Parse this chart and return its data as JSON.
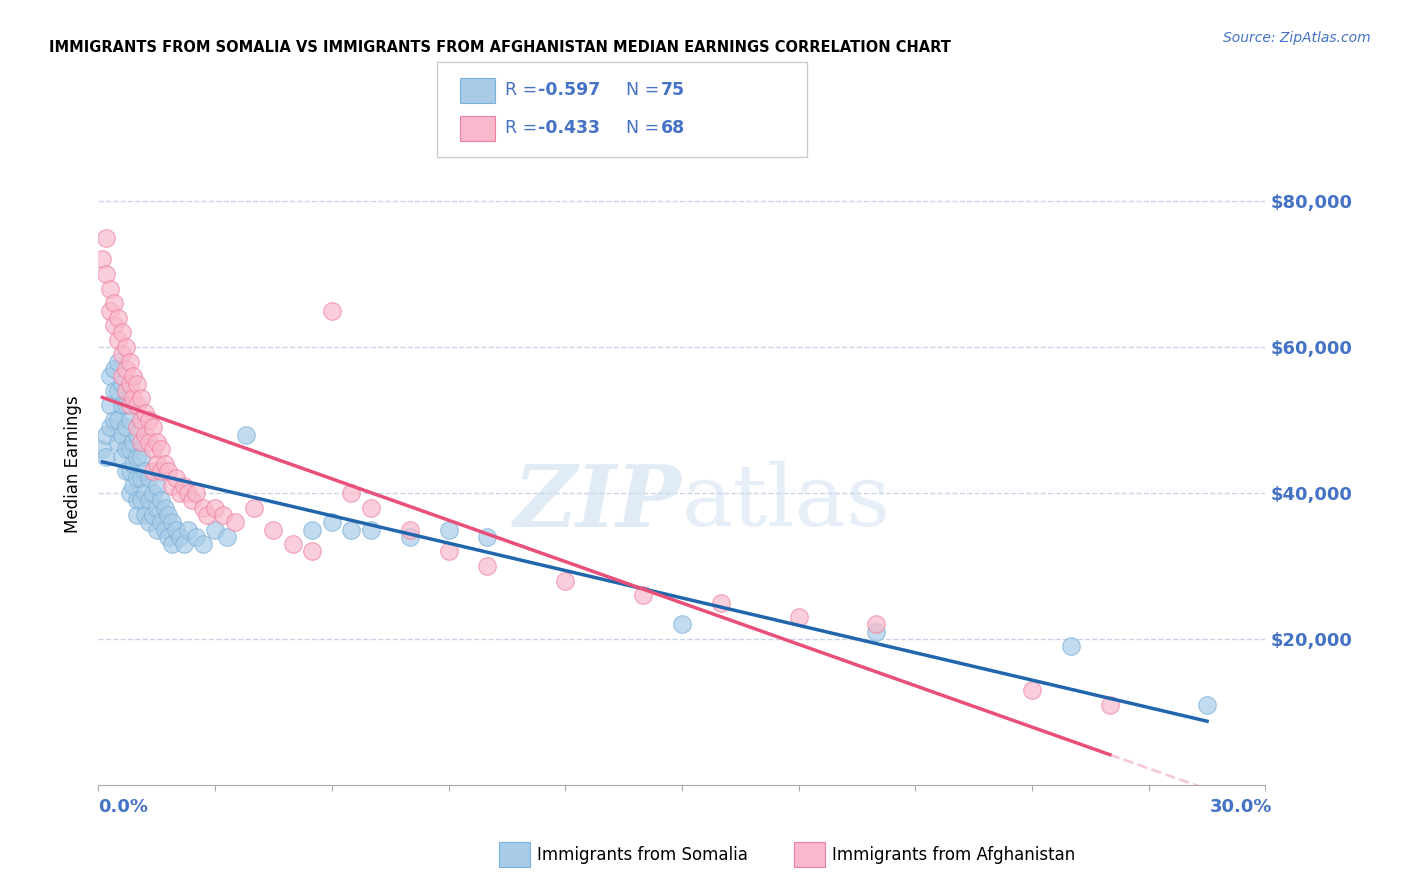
{
  "title": "IMMIGRANTS FROM SOMALIA VS IMMIGRANTS FROM AFGHANISTAN MEDIAN EARNINGS CORRELATION CHART",
  "source": "Source: ZipAtlas.com",
  "ylabel": "Median Earnings",
  "y_ticks": [
    20000,
    40000,
    60000,
    80000
  ],
  "y_tick_labels": [
    "$20,000",
    "$40,000",
    "$60,000",
    "$80,000"
  ],
  "xlim": [
    0.0,
    0.3
  ],
  "ylim": [
    0,
    88000
  ],
  "somalia_color": "#a8cce8",
  "afghanistan_color": "#f9b8cb",
  "somalia_edge_color": "#7ab0d8",
  "afghanistan_edge_color": "#f080a0",
  "regression_somalia_color": "#2166ac",
  "regression_afghanistan_color": "#e8507a",
  "regression_extended_color": "#f5c8d8",
  "blue_text_color": "#4472c4",
  "legend_text_color": "#4472c4",
  "watermark_color": "#d4e8f8",
  "somalia_x": [
    0.001,
    0.002,
    0.002,
    0.003,
    0.003,
    0.003,
    0.004,
    0.004,
    0.004,
    0.005,
    0.005,
    0.005,
    0.005,
    0.006,
    0.006,
    0.006,
    0.006,
    0.007,
    0.007,
    0.007,
    0.007,
    0.008,
    0.008,
    0.008,
    0.008,
    0.009,
    0.009,
    0.009,
    0.01,
    0.01,
    0.01,
    0.01,
    0.01,
    0.011,
    0.011,
    0.011,
    0.012,
    0.012,
    0.012,
    0.013,
    0.013,
    0.013,
    0.014,
    0.014,
    0.015,
    0.015,
    0.015,
    0.016,
    0.016,
    0.017,
    0.017,
    0.018,
    0.018,
    0.019,
    0.019,
    0.02,
    0.021,
    0.022,
    0.023,
    0.025,
    0.027,
    0.03,
    0.033,
    0.038,
    0.055,
    0.06,
    0.065,
    0.07,
    0.08,
    0.09,
    0.1,
    0.15,
    0.2,
    0.25,
    0.285
  ],
  "somalia_y": [
    46000,
    48000,
    45000,
    56000,
    52000,
    49000,
    57000,
    54000,
    50000,
    58000,
    54000,
    50000,
    47000,
    55000,
    52000,
    48000,
    45000,
    52000,
    49000,
    46000,
    43000,
    50000,
    46000,
    43000,
    40000,
    47000,
    44000,
    41000,
    48000,
    45000,
    42000,
    39000,
    37000,
    45000,
    42000,
    39000,
    43000,
    40000,
    37000,
    42000,
    39000,
    36000,
    40000,
    37000,
    41000,
    38000,
    35000,
    39000,
    36000,
    38000,
    35000,
    37000,
    34000,
    36000,
    33000,
    35000,
    34000,
    33000,
    35000,
    34000,
    33000,
    35000,
    34000,
    48000,
    35000,
    36000,
    35000,
    35000,
    34000,
    35000,
    34000,
    22000,
    21000,
    19000,
    11000
  ],
  "afghanistan_x": [
    0.001,
    0.002,
    0.002,
    0.003,
    0.003,
    0.004,
    0.004,
    0.005,
    0.005,
    0.006,
    0.006,
    0.006,
    0.007,
    0.007,
    0.007,
    0.008,
    0.008,
    0.008,
    0.009,
    0.009,
    0.01,
    0.01,
    0.01,
    0.011,
    0.011,
    0.011,
    0.012,
    0.012,
    0.013,
    0.013,
    0.014,
    0.014,
    0.014,
    0.015,
    0.015,
    0.016,
    0.016,
    0.017,
    0.018,
    0.019,
    0.02,
    0.021,
    0.022,
    0.023,
    0.024,
    0.025,
    0.027,
    0.028,
    0.03,
    0.032,
    0.035,
    0.04,
    0.045,
    0.05,
    0.055,
    0.06,
    0.065,
    0.07,
    0.08,
    0.09,
    0.1,
    0.12,
    0.14,
    0.16,
    0.18,
    0.2,
    0.24,
    0.26
  ],
  "afghanistan_y": [
    72000,
    75000,
    70000,
    68000,
    65000,
    66000,
    63000,
    64000,
    61000,
    62000,
    59000,
    56000,
    60000,
    57000,
    54000,
    58000,
    55000,
    52000,
    56000,
    53000,
    55000,
    52000,
    49000,
    53000,
    50000,
    47000,
    51000,
    48000,
    50000,
    47000,
    49000,
    46000,
    43000,
    47000,
    44000,
    46000,
    43000,
    44000,
    43000,
    41000,
    42000,
    40000,
    41000,
    40000,
    39000,
    40000,
    38000,
    37000,
    38000,
    37000,
    36000,
    38000,
    35000,
    33000,
    32000,
    65000,
    40000,
    38000,
    35000,
    32000,
    30000,
    28000,
    26000,
    25000,
    23000,
    22000,
    13000,
    11000
  ]
}
